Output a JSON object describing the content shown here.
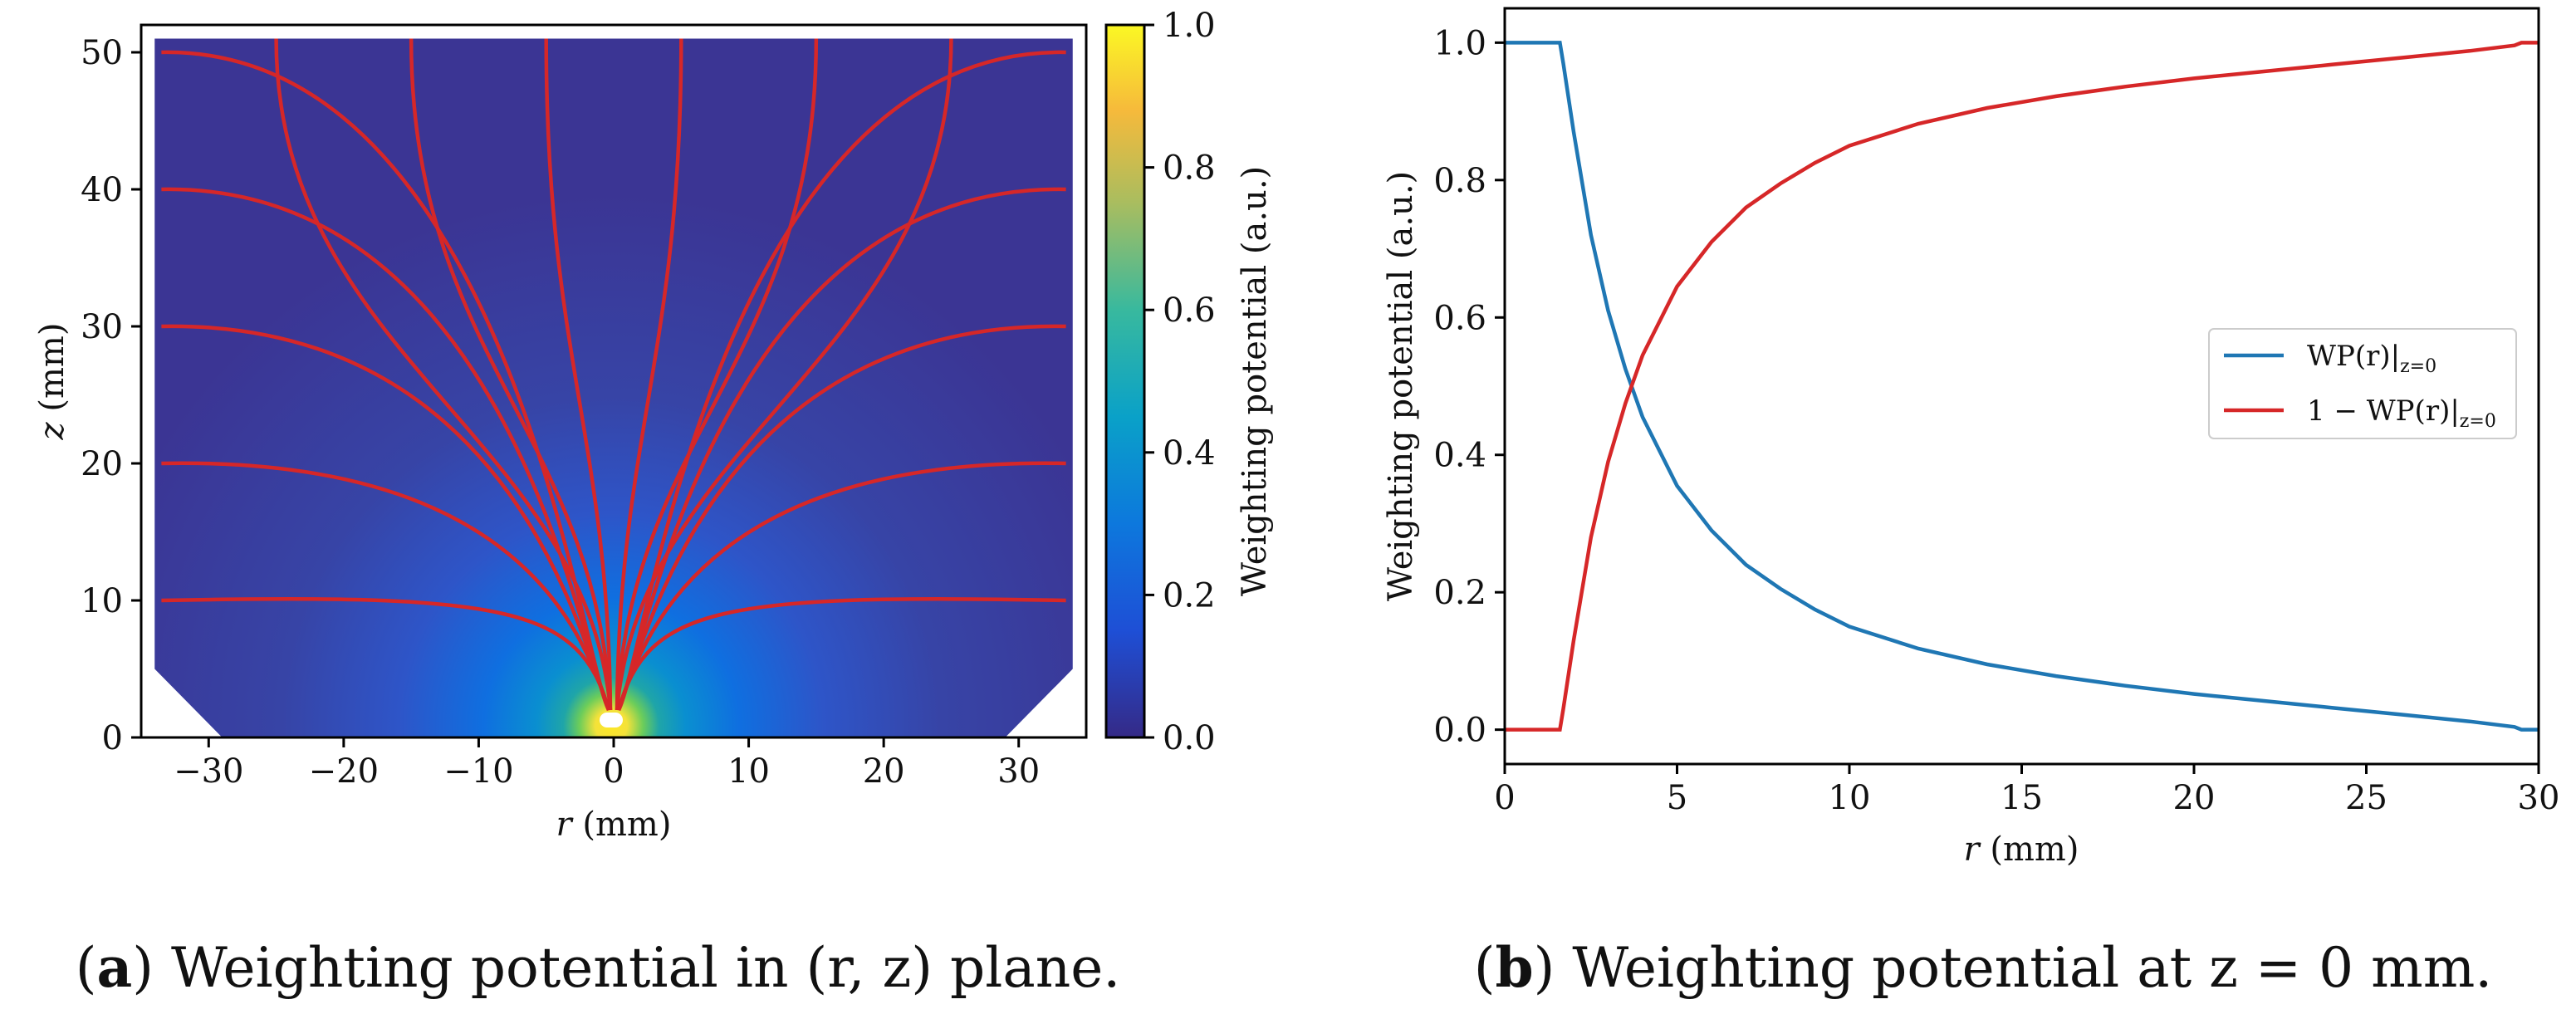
{
  "panel_a": {
    "caption_label": "a",
    "caption_text": "Weighting potential in (r, z) plane.",
    "xlabel_var": "r",
    "xlabel_unit": "(mm)",
    "ylabel_var": "z",
    "ylabel_unit": "(mm)",
    "colorbar_label": "Weighting potential (a.u.)"
  },
  "panel_b": {
    "caption_label": "b",
    "caption_text": "Weighting potential at z = 0 mm.",
    "xlabel_var": "r",
    "xlabel_unit": "(mm)",
    "ylabel": "Weighting potential (a.u.)"
  },
  "colors": {
    "series_blue": "#1f77b4",
    "series_red": "#d62728",
    "field_line_red": "#d62728",
    "map_low": "#3b3594",
    "map_high": "#fde725"
  },
  "chart_data": [
    {
      "type": "heatmap",
      "title": "",
      "xlabel": "r (mm)",
      "ylabel": "z (mm)",
      "xlim": [
        -35,
        35
      ],
      "ylim": [
        0,
        52
      ],
      "x_ticks": [
        -30,
        -20,
        -10,
        0,
        10,
        20,
        30
      ],
      "x_tick_labels": [
        "−30",
        "−20",
        "−10",
        "0",
        "10",
        "20",
        "30"
      ],
      "y_ticks": [
        0,
        10,
        20,
        30,
        40,
        50
      ],
      "y_tick_labels": [
        "0",
        "10",
        "20",
        "30",
        "40",
        "50"
      ],
      "colorbar": {
        "label": "Weighting potential (a.u.)",
        "range": [
          0.0,
          1.0
        ],
        "ticks": [
          0.0,
          0.2,
          0.4,
          0.6,
          0.8,
          1.0
        ],
        "tick_labels": [
          "0.0",
          "0.2",
          "0.4",
          "0.6",
          "0.8",
          "1.0"
        ],
        "colormap": "viridis-like"
      },
      "detector_outline_mm": [
        [
          -34,
          51
        ],
        [
          34,
          51
        ],
        [
          34,
          5
        ],
        [
          29,
          0
        ],
        [
          -29,
          0
        ],
        [
          -34,
          5
        ]
      ],
      "field_lines": {
        "vertical_start_r_mm": [
          -25,
          -15,
          -5,
          5,
          15,
          25
        ],
        "horizontal_start_z_mm": [
          10,
          20,
          30,
          40,
          50
        ],
        "end_point_mm": [
          0,
          2
        ]
      }
    },
    {
      "type": "line",
      "title": "",
      "xlabel": "r (mm)",
      "ylabel": "Weighting potential (a.u.)",
      "xlim": [
        0,
        30
      ],
      "ylim": [
        -0.05,
        1.05
      ],
      "x_ticks": [
        0,
        5,
        10,
        15,
        20,
        25,
        30
      ],
      "x_tick_labels": [
        "0",
        "5",
        "10",
        "15",
        "20",
        "25",
        "30"
      ],
      "y_ticks": [
        0.0,
        0.2,
        0.4,
        0.6,
        0.8,
        1.0
      ],
      "y_tick_labels": [
        "0.0",
        "0.2",
        "0.4",
        "0.6",
        "0.8",
        "1.0"
      ],
      "legend_position": "center-right",
      "x": [
        0,
        1.6,
        1.7,
        2,
        2.5,
        3,
        3.5,
        4,
        5,
        6,
        7,
        8,
        9,
        10,
        12,
        14,
        16,
        18,
        20,
        22,
        24,
        26,
        28,
        29.3,
        29.5,
        30
      ],
      "series": [
        {
          "name": "WP(r)|z=0",
          "legend_main": "WP(r)|",
          "legend_sub": "z=0",
          "color": "#1f77b4",
          "values": [
            1.0,
            1.0,
            0.97,
            0.87,
            0.72,
            0.61,
            0.525,
            0.455,
            0.355,
            0.29,
            0.24,
            0.205,
            0.175,
            0.15,
            0.118,
            0.095,
            0.078,
            0.064,
            0.052,
            0.042,
            0.032,
            0.022,
            0.012,
            0.004,
            0.0,
            0.0
          ]
        },
        {
          "name": "1 − WP(r)|z=0",
          "legend_main": "1 − WP(r)|",
          "legend_sub": "z=0",
          "color": "#d62728",
          "values": [
            0.0,
            0.0,
            0.03,
            0.13,
            0.28,
            0.39,
            0.475,
            0.545,
            0.645,
            0.71,
            0.76,
            0.795,
            0.825,
            0.85,
            0.882,
            0.905,
            0.922,
            0.936,
            0.948,
            0.958,
            0.968,
            0.978,
            0.988,
            0.996,
            1.0,
            1.0
          ]
        }
      ]
    }
  ]
}
